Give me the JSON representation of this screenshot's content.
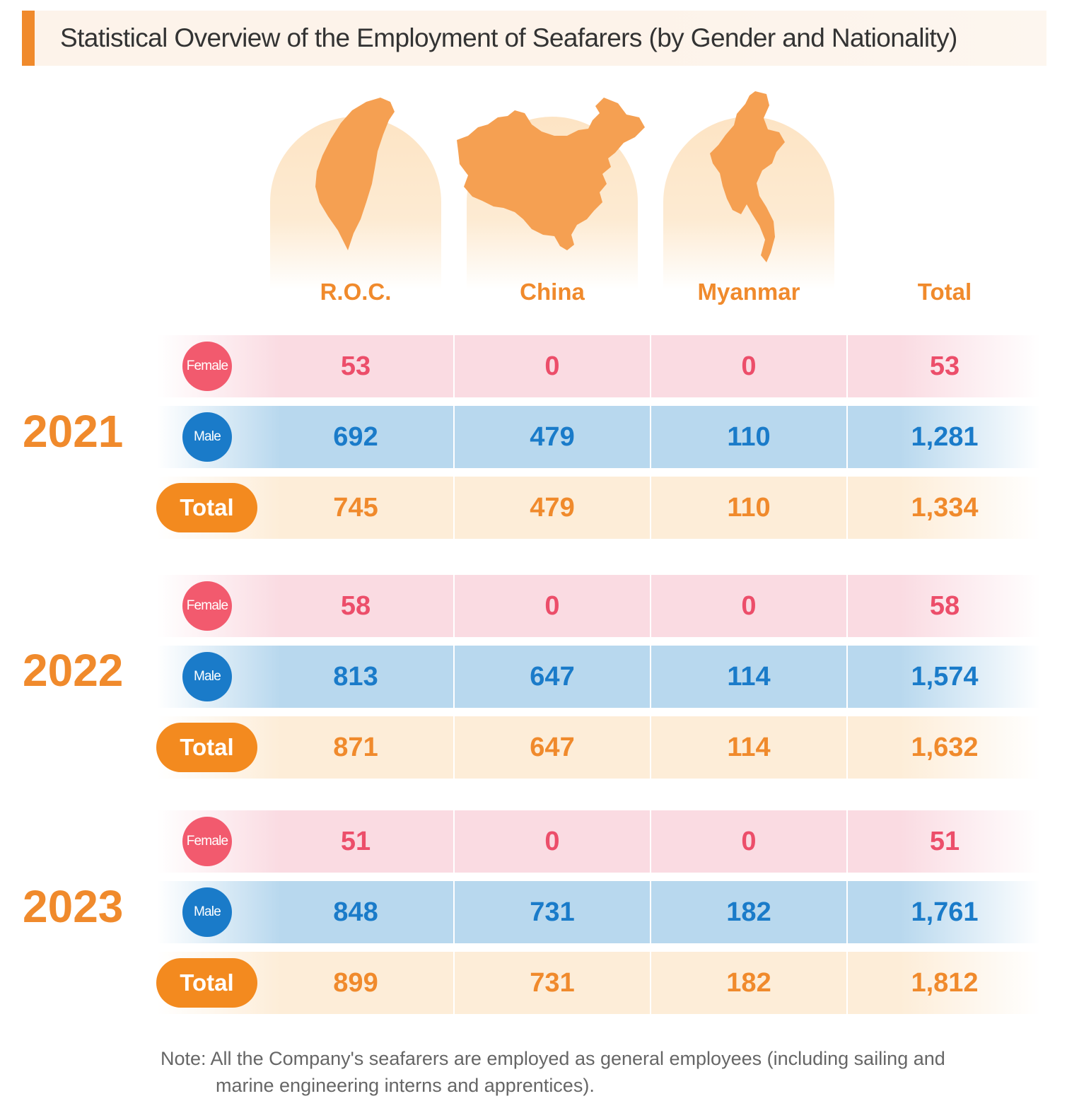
{
  "title": "Statistical Overview of the Employment of Seafarers (by Gender and Nationality)",
  "columns": [
    "R.O.C.",
    "China",
    "Myanmar",
    "Total"
  ],
  "icons": [
    "taiwan-map-icon",
    "china-map-icon",
    "myanmar-map-icon"
  ],
  "labels": {
    "female": "Female",
    "male": "Male",
    "total": "Total"
  },
  "years": [
    {
      "year": "2021",
      "female": [
        "53",
        "0",
        "0",
        "53"
      ],
      "male": [
        "692",
        "479",
        "110",
        "1,281"
      ],
      "total": [
        "745",
        "479",
        "110",
        "1,334"
      ]
    },
    {
      "year": "2022",
      "female": [
        "58",
        "0",
        "0",
        "58"
      ],
      "male": [
        "813",
        "647",
        "114",
        "1,574"
      ],
      "total": [
        "871",
        "647",
        "114",
        "1,632"
      ]
    },
    {
      "year": "2023",
      "female": [
        "51",
        "0",
        "0",
        "51"
      ],
      "male": [
        "848",
        "731",
        "182",
        "1,761"
      ],
      "total": [
        "899",
        "731",
        "182",
        "1,812"
      ]
    }
  ],
  "note": {
    "line1": "Note: All the Company's seafarers are employed as general employees (including sailing and",
    "line2": "marine engineering interns and apprentices)."
  },
  "colors": {
    "accent": "#f08a2c",
    "female": "#ec4e6a",
    "male": "#1a7bc9"
  },
  "chart_data": {
    "type": "table",
    "title": "Statistical Overview of the Employment of Seafarers (by Gender and Nationality)",
    "columns": [
      "R.O.C.",
      "China",
      "Myanmar",
      "Total"
    ],
    "rows": [
      {
        "year": 2021,
        "gender": "Female",
        "values": [
          53,
          0,
          0,
          53
        ]
      },
      {
        "year": 2021,
        "gender": "Male",
        "values": [
          692,
          479,
          110,
          1281
        ]
      },
      {
        "year": 2021,
        "gender": "Total",
        "values": [
          745,
          479,
          110,
          1334
        ]
      },
      {
        "year": 2022,
        "gender": "Female",
        "values": [
          58,
          0,
          0,
          58
        ]
      },
      {
        "year": 2022,
        "gender": "Male",
        "values": [
          813,
          647,
          114,
          1574
        ]
      },
      {
        "year": 2022,
        "gender": "Total",
        "values": [
          871,
          647,
          114,
          1632
        ]
      },
      {
        "year": 2023,
        "gender": "Female",
        "values": [
          51,
          0,
          0,
          51
        ]
      },
      {
        "year": 2023,
        "gender": "Male",
        "values": [
          848,
          731,
          182,
          1761
        ]
      },
      {
        "year": 2023,
        "gender": "Total",
        "values": [
          899,
          731,
          182,
          1812
        ]
      }
    ]
  }
}
